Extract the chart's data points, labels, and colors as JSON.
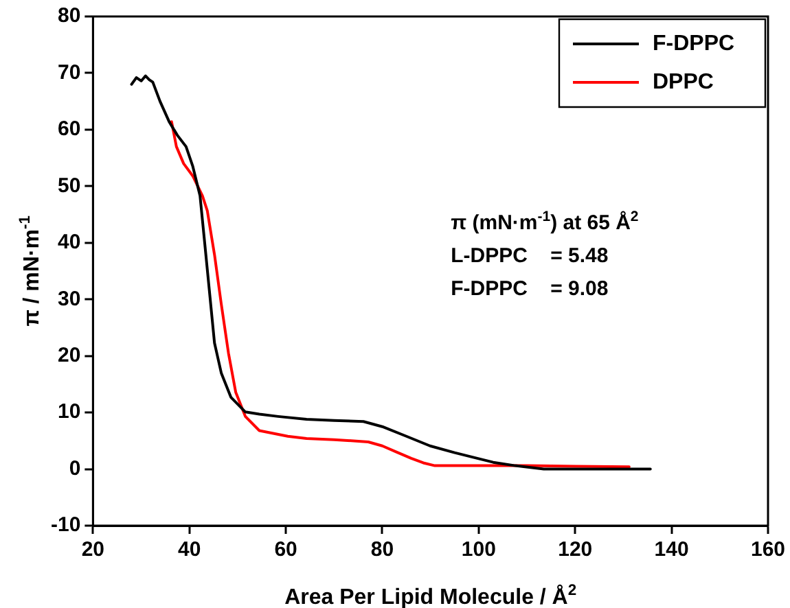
{
  "chart_data": {
    "type": "line",
    "xlabel": "Area Per Lipid Molecule / Å$^{2}$",
    "ylabel": "π / mN·m$^{-1}$",
    "xlim": [
      20,
      160
    ],
    "xticks": [
      20,
      40,
      60,
      80,
      100,
      120,
      140,
      160
    ],
    "ylim": [
      -10,
      80
    ],
    "yticks": [
      -10,
      0,
      10,
      20,
      30,
      40,
      50,
      60,
      70,
      80
    ],
    "grid": false,
    "legend": "top right",
    "marker": "none",
    "line_style": "solid",
    "annotations": [
      "π (mN·m$^{-1}$) at 65 Å$^{2}$",
      "L-DPPC    = 5.48",
      "F-DPPC    = 9.08"
    ],
    "series": [
      {
        "name": "F-DPPC",
        "color": "#000000",
        "x": [
          28,
          29,
          30,
          30.9,
          31.7,
          32.4,
          33.9,
          35.8,
          37.5,
          39.3,
          40.7,
          42.2,
          43.2,
          44.2,
          45.2,
          46.6,
          48.6,
          51.6,
          54.5,
          58.4,
          64.3,
          70,
          76.1,
          80,
          85,
          89.9,
          95,
          99.7,
          103,
          107.6,
          113.5,
          120,
          135.6
        ],
        "values": [
          68,
          69.2,
          68.6,
          69.5,
          68.8,
          68.4,
          65,
          61.4,
          59,
          57,
          53.5,
          48.3,
          39.7,
          31,
          22.3,
          17,
          12.7,
          10.1,
          9.7,
          9.3,
          8.8,
          8.6,
          8.4,
          7.5,
          5.8,
          4.1,
          2.9,
          1.9,
          1.2,
          0.6,
          0,
          0,
          0
        ]
      },
      {
        "name": "DPPC",
        "color": "#ff0000",
        "x": [
          36.3,
          37.3,
          38.8,
          40.7,
          42.7,
          43.7,
          45.2,
          46.6,
          48.1,
          49.6,
          51.6,
          54.5,
          60.4,
          64.3,
          70,
          77.1,
          80,
          83,
          86,
          88.5,
          90.9,
          100,
          110,
          120,
          131.2
        ],
        "values": [
          61.4,
          57,
          54,
          51.8,
          48.3,
          45.7,
          37.9,
          29.2,
          20.5,
          13.6,
          9.3,
          6.8,
          5.8,
          5.4,
          5.2,
          4.8,
          4.1,
          3,
          1.9,
          1.1,
          0.6,
          0.6,
          0.6,
          0.5,
          0.4
        ]
      }
    ]
  }
}
